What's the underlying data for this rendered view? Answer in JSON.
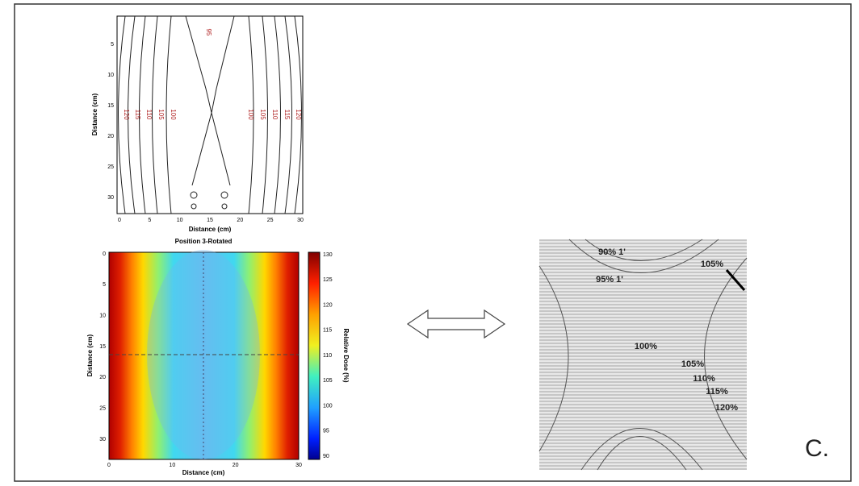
{
  "panel_a": {
    "x_label": "Distance (cm)",
    "y_label": "Distance (cm)",
    "xticks": [
      "0",
      "5",
      "10",
      "15",
      "20",
      "25",
      "30"
    ],
    "yticks": [
      "5",
      "10",
      "15",
      "20",
      "25",
      "30"
    ],
    "contour_labels": [
      "120",
      "115",
      "110",
      "105",
      "100",
      "100",
      "105",
      "110",
      "115",
      "120",
      "95"
    ]
  },
  "panel_b": {
    "title": "Position 3-Rotated",
    "x_label": "Distance (cm)",
    "y_label": "Distance (cm)",
    "xticks": [
      "0",
      "10",
      "20",
      "30"
    ],
    "yticks": [
      "0",
      "5",
      "10",
      "15",
      "20",
      "25",
      "30"
    ],
    "colorbar_label": "Relative Dose (%)",
    "colorbar_ticks": [
      "130",
      "125",
      "120",
      "115",
      "110",
      "105",
      "100",
      "95",
      "90"
    ]
  },
  "panel_c": {
    "labels": [
      "90% 1'",
      "95% 1'",
      "105%",
      "100%",
      "105%",
      "110%",
      "115%",
      "120%"
    ],
    "letter": "C."
  }
}
